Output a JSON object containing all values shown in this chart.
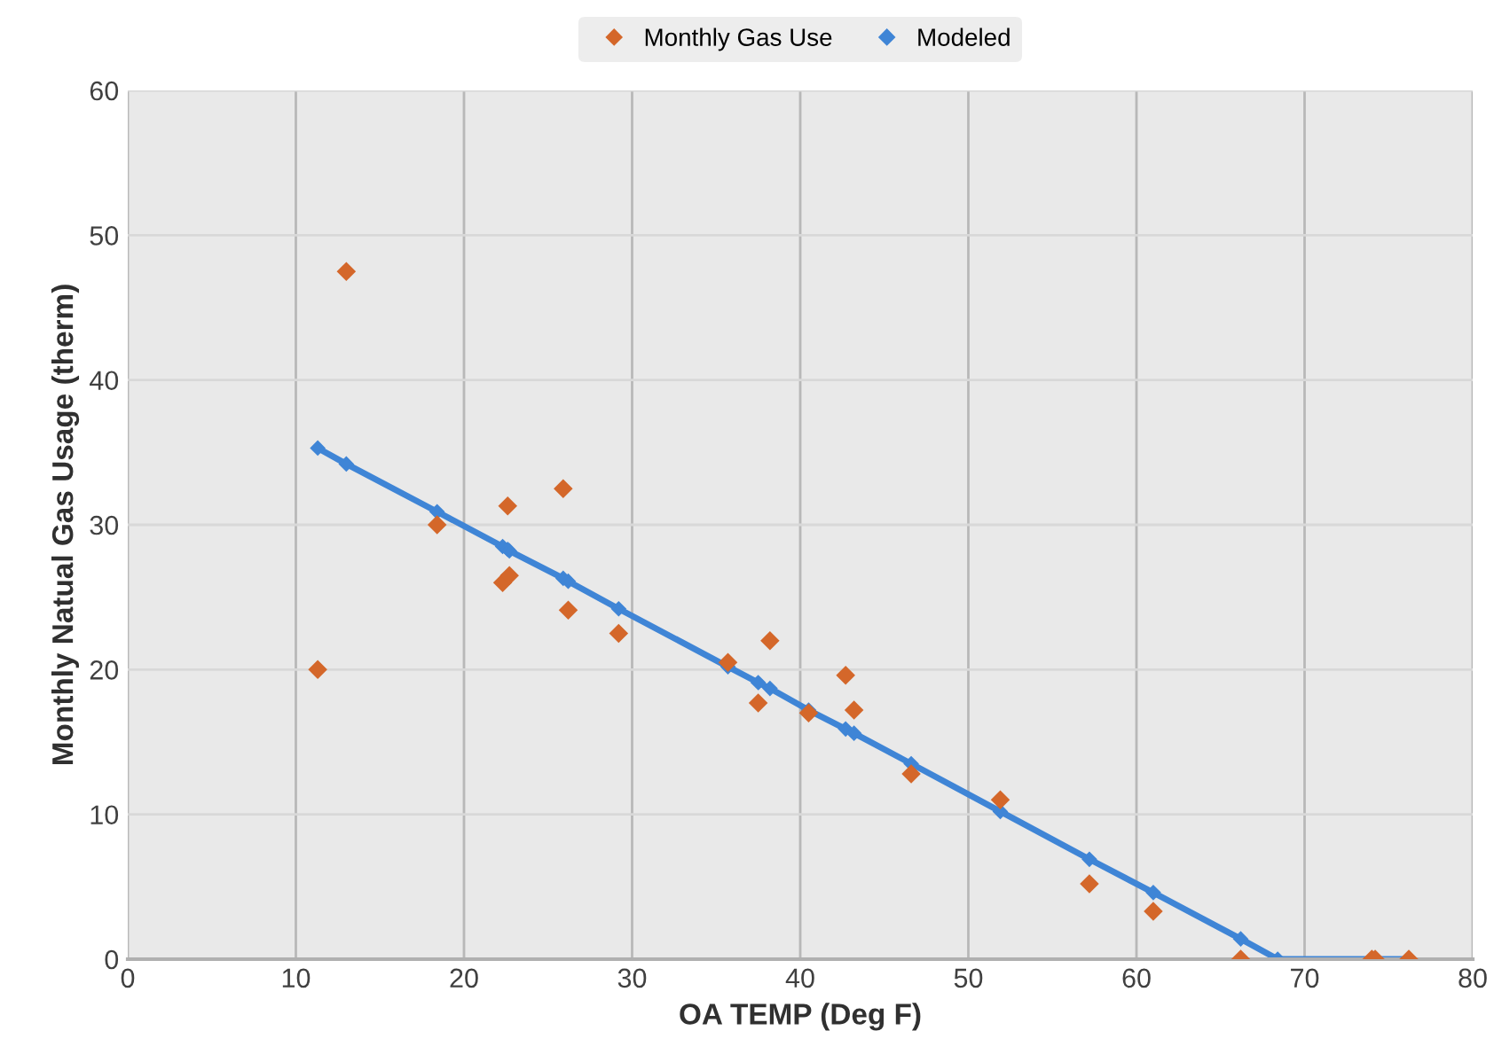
{
  "chart_data": {
    "type": "scatter",
    "xlabel": "OA TEMP (Deg F)",
    "ylabel": "Monthly Natual Gas Usage (therm)",
    "xlim": [
      0,
      80
    ],
    "xticks": [
      0,
      10,
      20,
      30,
      40,
      50,
      60,
      70,
      80
    ],
    "ylim": [
      0,
      60
    ],
    "yticks": [
      0,
      10,
      20,
      30,
      40,
      50,
      60
    ],
    "grid": true,
    "legend": "top",
    "marker": "diamond",
    "series": [
      {
        "name": "Monthly Gas Use",
        "color": "#d4672a",
        "x": [
          11.3,
          13.0,
          18.4,
          22.6,
          22.3,
          22.7,
          25.9,
          26.2,
          29.2,
          35.7,
          37.5,
          38.2,
          40.5,
          42.7,
          43.2,
          46.6,
          51.9,
          57.2,
          61.0,
          66.2,
          74.0,
          74.2,
          76.2
        ],
        "values": [
          20.0,
          47.5,
          30.0,
          31.3,
          26.0,
          26.5,
          32.5,
          24.1,
          22.5,
          20.5,
          17.7,
          22.0,
          17.0,
          19.6,
          17.2,
          12.8,
          11.0,
          5.2,
          3.3,
          0,
          0,
          0,
          0
        ]
      },
      {
        "name": "Modeled",
        "type": "line",
        "color": "#3f85d6",
        "x": [
          11.3,
          13.0,
          18.4,
          22.3,
          22.6,
          22.7,
          25.9,
          26.2,
          29.2,
          35.7,
          37.5,
          38.2,
          40.5,
          42.7,
          43.2,
          46.6,
          51.9,
          57.2,
          61.0,
          66.2,
          68.4,
          74.0,
          74.2,
          76.2
        ],
        "values": [
          35.3,
          34.2,
          30.9,
          28.5,
          28.3,
          28.2,
          26.3,
          26.1,
          24.2,
          20.2,
          19.1,
          18.7,
          17.2,
          15.9,
          15.6,
          13.5,
          10.2,
          6.9,
          4.6,
          1.4,
          0,
          0,
          0,
          0
        ]
      }
    ]
  }
}
